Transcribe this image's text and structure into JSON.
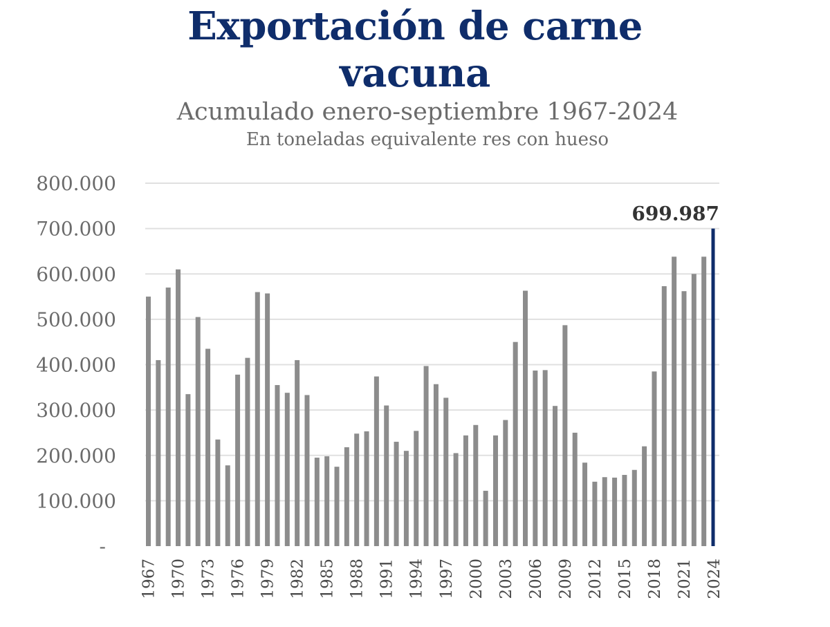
{
  "chart_data": {
    "type": "bar",
    "title_line1": "Exportación de carne",
    "title_line2": "vacuna",
    "subtitle": "Acumulado enero-septiembre 1967-2024",
    "subtitle2": "En toneladas equivalente res con hueso",
    "xlabel": "",
    "ylabel": "",
    "ylim": [
      0,
      800000
    ],
    "grid": true,
    "y_tick_labels": [
      "-",
      "100.000",
      "200.000",
      "300.000",
      "400.000",
      "500.000",
      "600.000",
      "700.000",
      "800.000"
    ],
    "x_tick_labels": [
      "1967",
      "1970",
      "1973",
      "1976",
      "1979",
      "1982",
      "1985",
      "1988",
      "1991",
      "1994",
      "1997",
      "2000",
      "2003",
      "2006",
      "2009",
      "2012",
      "2015",
      "2018",
      "2021",
      "2024"
    ],
    "categories": [
      "1967",
      "1968",
      "1969",
      "1970",
      "1971",
      "1972",
      "1973",
      "1974",
      "1975",
      "1976",
      "1977",
      "1978",
      "1979",
      "1980",
      "1981",
      "1982",
      "1983",
      "1984",
      "1985",
      "1986",
      "1987",
      "1988",
      "1989",
      "1990",
      "1991",
      "1992",
      "1993",
      "1994",
      "1995",
      "1996",
      "1997",
      "1998",
      "1999",
      "2000",
      "2001",
      "2002",
      "2003",
      "2004",
      "2005",
      "2006",
      "2007",
      "2008",
      "2009",
      "2010",
      "2011",
      "2012",
      "2013",
      "2014",
      "2015",
      "2016",
      "2017",
      "2018",
      "2019",
      "2020",
      "2021",
      "2022",
      "2023",
      "2024"
    ],
    "values": [
      550000,
      410000,
      570000,
      610000,
      335000,
      505000,
      435000,
      235000,
      178000,
      378000,
      415000,
      560000,
      557000,
      355000,
      338000,
      410000,
      333000,
      195000,
      198000,
      175000,
      218000,
      248000,
      253000,
      374000,
      310000,
      230000,
      210000,
      254000,
      397000,
      357000,
      327000,
      205000,
      244000,
      267000,
      122000,
      244000,
      278000,
      450000,
      563000,
      387000,
      388000,
      309000,
      487000,
      250000,
      184000,
      142000,
      152000,
      151000,
      157000,
      168000,
      220000,
      385000,
      573000,
      638000,
      562000,
      600000,
      638000,
      699987
    ],
    "highlight_label": "699.987",
    "colors": {
      "bar": "#8c8c8c",
      "highlight": "#0f2d6b",
      "grid": "#e0e0e0",
      "title": "#0f2d6b"
    }
  }
}
